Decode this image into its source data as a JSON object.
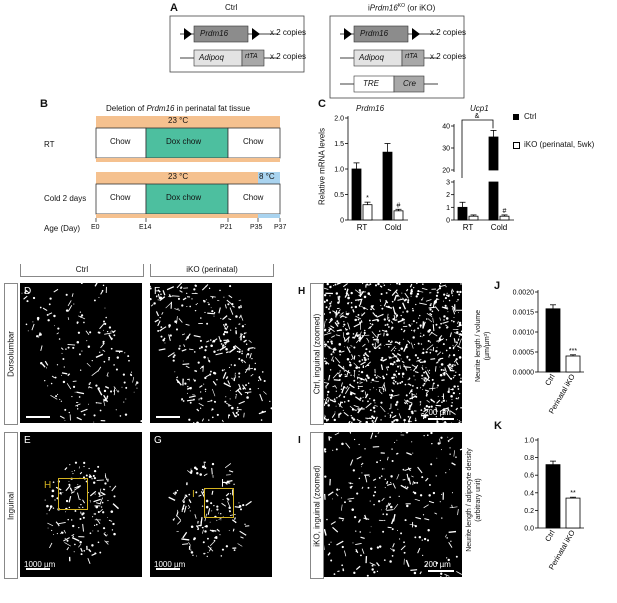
{
  "panel_a": {
    "label": "A",
    "ctrl": {
      "title": "Ctrl",
      "gene1": "Prdm16",
      "gene2a": "Adipoq",
      "gene2b": "rtTA",
      "copies": "x 2 copies"
    },
    "iko": {
      "title_prefix": "i",
      "title_gene": "Prdm16",
      "title_sup": "KO",
      "title_suffix": " (or iKO)",
      "gene1": "Prdm16",
      "gene2a": "Adipoq",
      "gene2b": "rtTA",
      "gene3a": "TRE",
      "gene3b": "Cre",
      "copies": "x 2 copies"
    }
  },
  "panel_b": {
    "label": "B",
    "title_pre": "Deletion of ",
    "title_gene": "Prdm16",
    "title_post": " in perinatal fat tissue",
    "rows": [
      {
        "name": "RT",
        "temp": "23 °C",
        "segments": [
          "Chow",
          "Dox chow",
          "Chow"
        ]
      },
      {
        "name": "Cold 2 days",
        "temp": "23 °C",
        "temp2": "8 °C",
        "segments": [
          "Chow",
          "Dox chow",
          "Chow"
        ]
      }
    ],
    "age_label": "Age (Day)",
    "ages": [
      "E0",
      "E14",
      "P21",
      "P35",
      "P37"
    ],
    "colors": {
      "warm": "#f5c18f",
      "dox": "#4dbf9f",
      "cold": "#a9d3ef"
    }
  },
  "panel_c": {
    "label": "C",
    "ylabel": "Relative mRNA levels",
    "legend": [
      {
        "name": "Ctrl",
        "fill": "#000000"
      },
      {
        "name": "iKO (perinatal, 5wk)",
        "fill": "#ffffff"
      }
    ],
    "charts": [
      {
        "title": "Prdm16",
        "categories": [
          "RT",
          "Cold"
        ],
        "ticks": [
          "0",
          "0.5",
          "1.0",
          "1.5",
          "2.0"
        ],
        "ylim": [
          0,
          2
        ],
        "ctrl": [
          1.0,
          1.33
        ],
        "ctrl_err": [
          0.12,
          0.17
        ],
        "iko": [
          0.3,
          0.18
        ],
        "iko_err": [
          0.05,
          0.03
        ],
        "marks": [
          "*",
          "#"
        ]
      },
      {
        "title": "Ucp1",
        "categories": [
          "RT",
          "Cold"
        ],
        "ticks_low": [
          "0",
          "1",
          "2",
          "3"
        ],
        "ticks_high": [
          "20",
          "30",
          "40"
        ],
        "ctrl": [
          1.0,
          35
        ],
        "ctrl_err": [
          0.4,
          3
        ],
        "iko": [
          0.3,
          0.3
        ],
        "iko_err": [
          0.1,
          0.1
        ],
        "marks": [
          "#"
        ],
        "bracket": "&"
      }
    ]
  },
  "micrographs": {
    "col_ctrl": "Ctrl",
    "col_iko": "iKO (perinatal)",
    "row_dorso": "Dorsolumbar",
    "row_inguinal": "Inguinal",
    "panels": [
      {
        "label": "D"
      },
      {
        "label": "F"
      },
      {
        "label": "E",
        "box": "H"
      },
      {
        "label": "G",
        "box": "I"
      },
      {
        "label": "H",
        "side": "Ctrl, inguinal (zoomed)"
      },
      {
        "label": "I",
        "side": "iKO, inguinal (zoomed)"
      }
    ],
    "scale_1000": "1000 µm",
    "scale_200": "200 µm",
    "box_color": "#d4b21f"
  },
  "chart_data": [
    {
      "type": "bar",
      "panel": "J",
      "categories": [
        "Ctrl",
        "Perinatal iKO"
      ],
      "values": [
        0.00158,
        0.0004
      ],
      "errors": [
        0.0001,
        3e-05
      ],
      "ylabel": "Neurite length / volume (µm/µm³)",
      "ticks": [
        "0.0000",
        "0.0005",
        "0.0010",
        "0.0015",
        "0.0020"
      ],
      "ylim": [
        0,
        0.002
      ],
      "marks": [
        "",
        "***"
      ]
    },
    {
      "type": "bar",
      "panel": "K",
      "categories": [
        "Ctrl",
        "Perinatal iKO"
      ],
      "values": [
        0.72,
        0.34
      ],
      "errors": [
        0.04,
        0.01
      ],
      "ylabel": "Neurite length / adipocyte density (arbitrary unit)",
      "ticks": [
        "0.0",
        "0.2",
        "0.4",
        "0.6",
        "0.8",
        "1.0"
      ],
      "ylim": [
        0,
        1.0
      ],
      "marks": [
        "",
        "**"
      ]
    }
  ]
}
